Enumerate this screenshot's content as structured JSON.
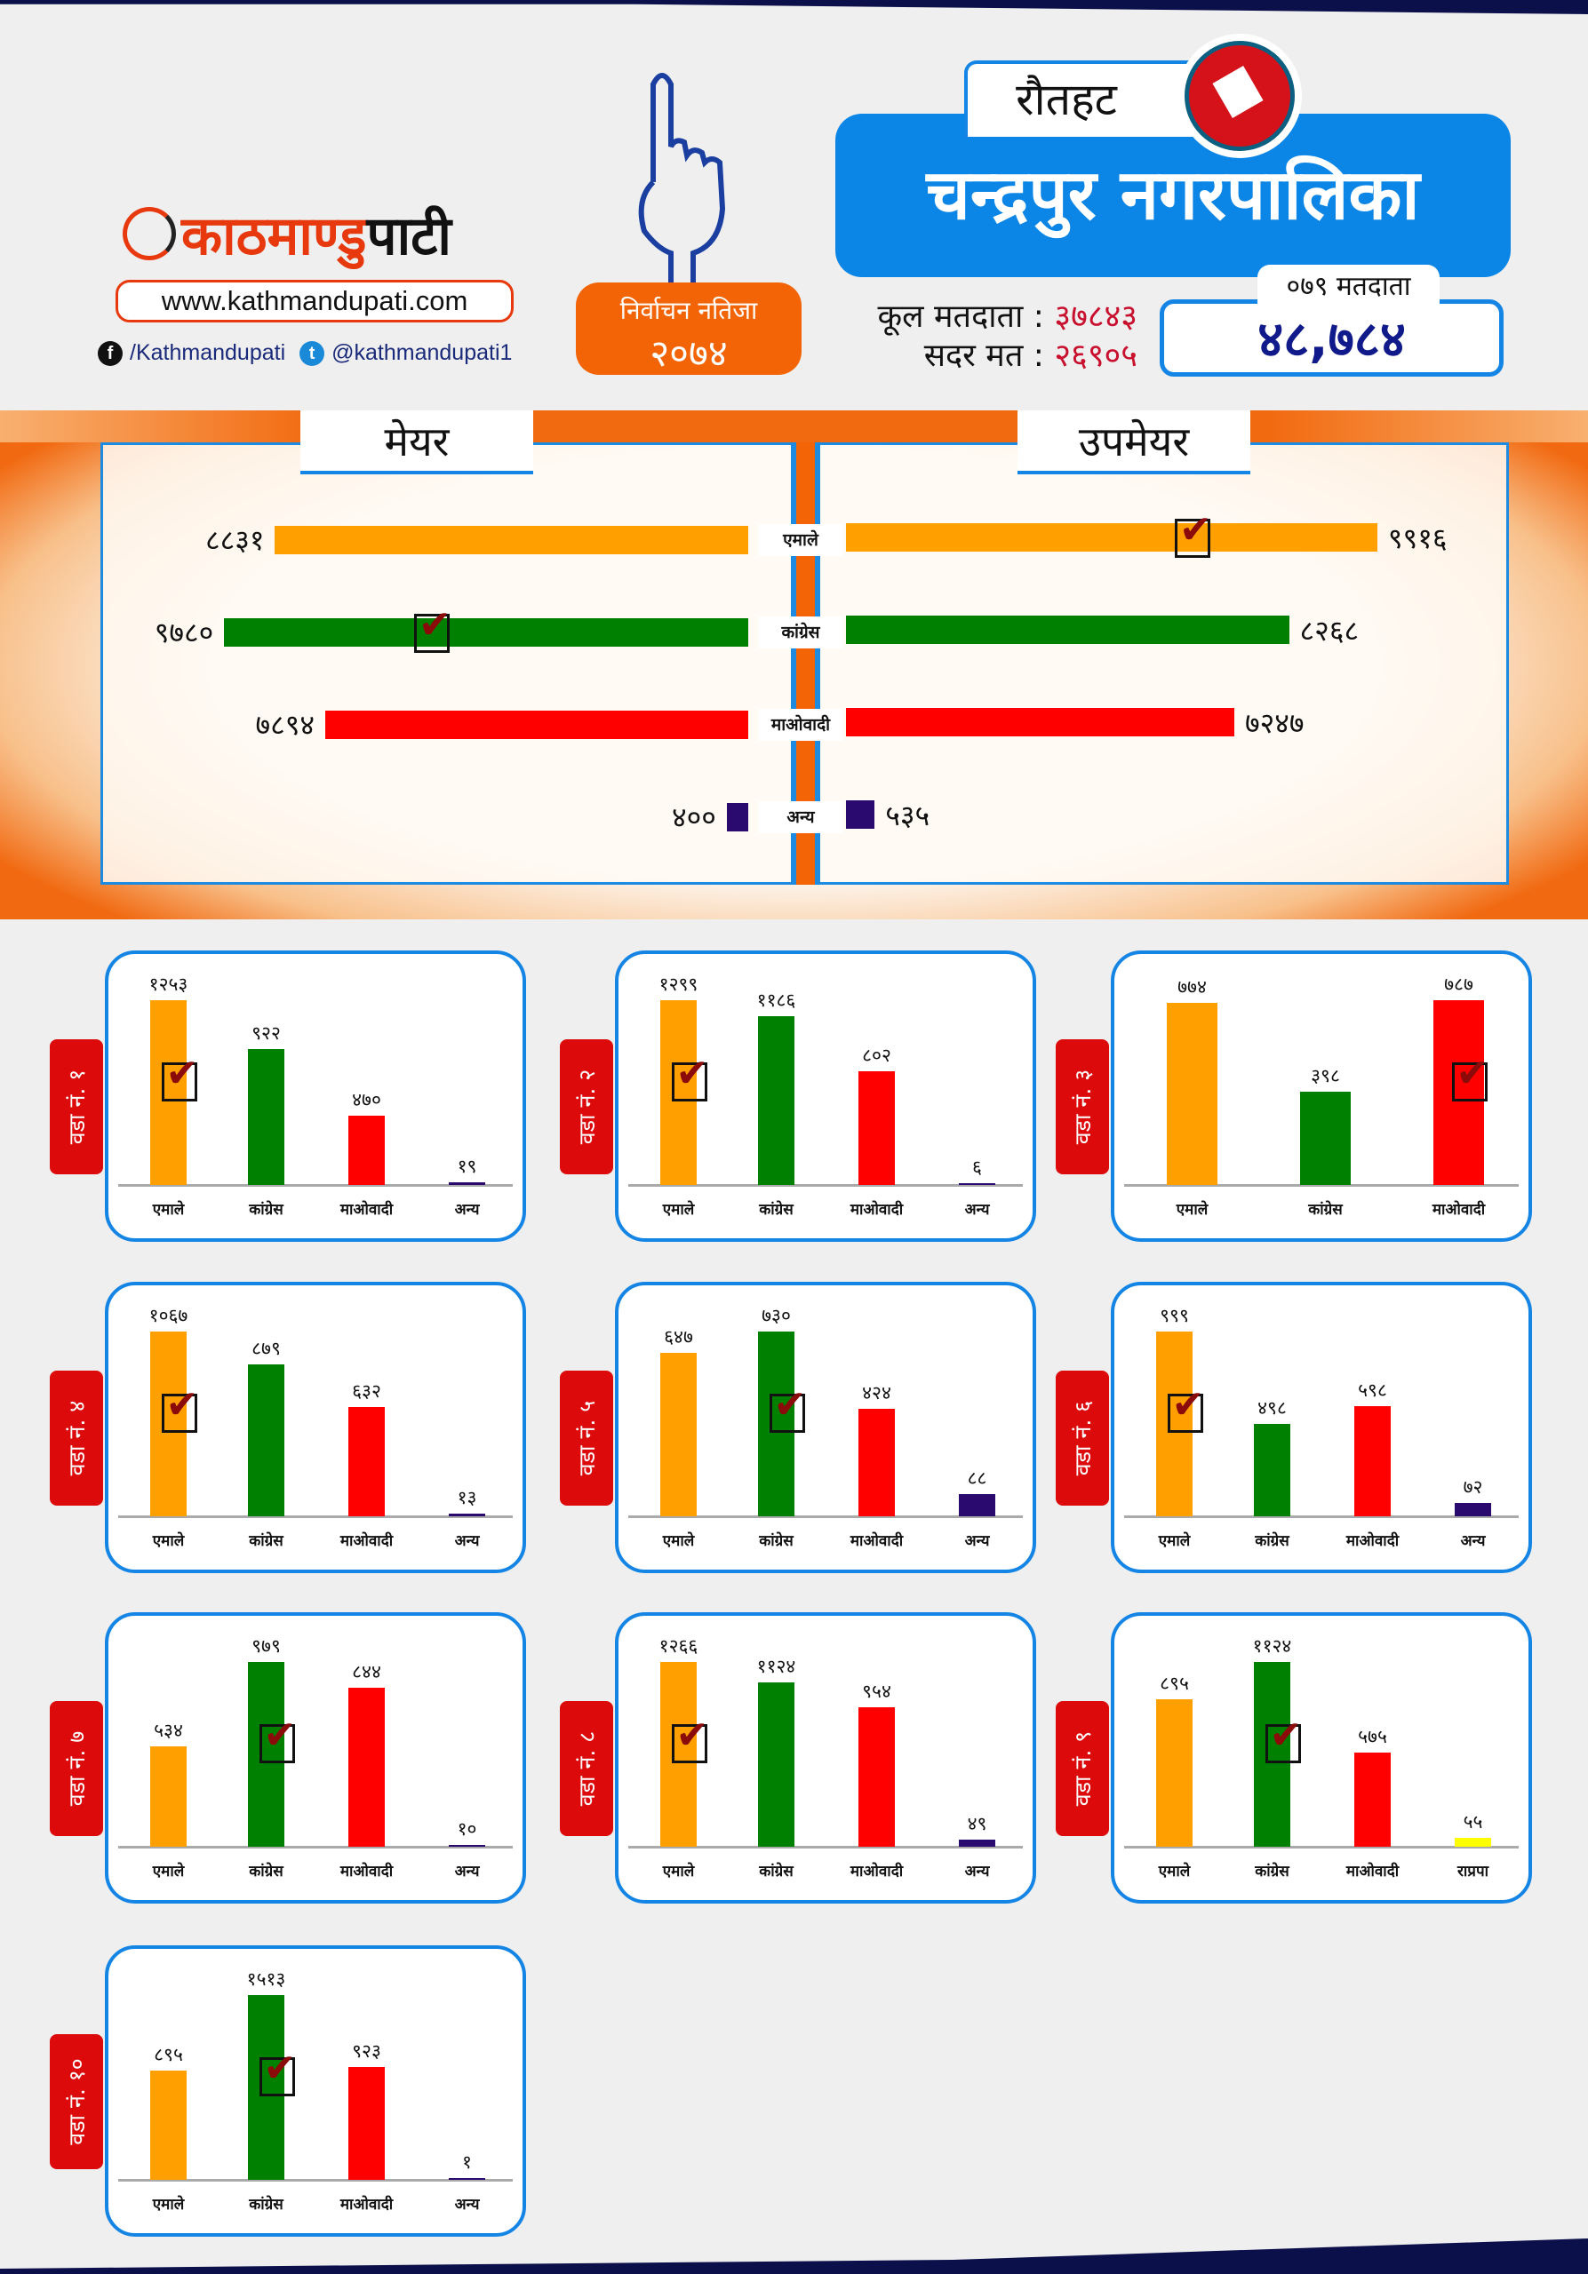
{
  "brand": {
    "name_part1": "काठमाण्डु",
    "name_part2": "पाटी",
    "url": "www.kathmandupati.com",
    "facebook": "/Kathmandupati",
    "twitter": "@kathmandupati1"
  },
  "badge": {
    "line1": "निर्वाचन नतिजा",
    "line2": "२०७४"
  },
  "district": "रौतहट",
  "municipality": "चन्द्रपुर  नगरपालिका",
  "totals": {
    "total_voters_label": "कूल मतदाता :",
    "total_voters": "३७८४३",
    "valid_votes_label": "सदर मत :",
    "valid_votes": "२६९०५"
  },
  "voters_079": {
    "label": "०७९ मतदाता",
    "value": "४८,७८४"
  },
  "colors": {
    "uml": "#ffa000",
    "congress": "#008000",
    "maoist": "#ff0000",
    "other": "#2a0a6e",
    "rpp": "#ffff00"
  },
  "summary": {
    "mayor_title": "मेयर",
    "deputy_title": "उपमेयर",
    "rows": [
      {
        "party": "एमाले",
        "key": "uml",
        "mayor": 8831,
        "mayor_label": "८८३१",
        "deputy": 9916,
        "deputy_label": "९९१६",
        "winner": "deputy"
      },
      {
        "party": "कांग्रेस",
        "key": "congress",
        "mayor": 9780,
        "mayor_label": "९७८०",
        "deputy": 8268,
        "deputy_label": "८२६८",
        "winner": "mayor"
      },
      {
        "party": "माओवादी",
        "key": "maoist",
        "mayor": 7894,
        "mayor_label": "७८९४",
        "deputy": 7247,
        "deputy_label": "७२४७",
        "winner": ""
      },
      {
        "party": "अन्य",
        "key": "other",
        "mayor": 400,
        "mayor_label": "४००",
        "deputy": 535,
        "deputy_label": "५३५",
        "winner": ""
      }
    ]
  },
  "wards": [
    {
      "label": "वडा नं. १",
      "winner": 0,
      "bars": [
        {
          "party": "एमाले",
          "key": "uml",
          "votes": 1253,
          "text": "१२५३"
        },
        {
          "party": "कांग्रेस",
          "key": "congress",
          "votes": 922,
          "text": "९२२"
        },
        {
          "party": "माओवादी",
          "key": "maoist",
          "votes": 470,
          "text": "४७०"
        },
        {
          "party": "अन्य",
          "key": "other",
          "votes": 19,
          "text": "१९"
        }
      ]
    },
    {
      "label": "वडा नं. २",
      "winner": 0,
      "bars": [
        {
          "party": "एमाले",
          "key": "uml",
          "votes": 1299,
          "text": "१२९९"
        },
        {
          "party": "कांग्रेस",
          "key": "congress",
          "votes": 1186,
          "text": "११८६"
        },
        {
          "party": "माओवादी",
          "key": "maoist",
          "votes": 802,
          "text": "८०२"
        },
        {
          "party": "अन्य",
          "key": "other",
          "votes": 6,
          "text": "६"
        }
      ]
    },
    {
      "label": "वडा नं. ३",
      "winner": 2,
      "bars": [
        {
          "party": "एमाले",
          "key": "uml",
          "votes": 774,
          "text": "७७४"
        },
        {
          "party": "कांग्रेस",
          "key": "congress",
          "votes": 398,
          "text": "३९८"
        },
        {
          "party": "माओवादी",
          "key": "maoist",
          "votes": 787,
          "text": "७८७"
        }
      ]
    },
    {
      "label": "वडा नं. ४",
      "winner": 0,
      "bars": [
        {
          "party": "एमाले",
          "key": "uml",
          "votes": 1067,
          "text": "१०६७"
        },
        {
          "party": "कांग्रेस",
          "key": "congress",
          "votes": 879,
          "text": "८७९"
        },
        {
          "party": "माओवादी",
          "key": "maoist",
          "votes": 632,
          "text": "६३२"
        },
        {
          "party": "अन्य",
          "key": "other",
          "votes": 13,
          "text": "१३"
        }
      ]
    },
    {
      "label": "वडा नं. ५",
      "winner": 1,
      "bars": [
        {
          "party": "एमाले",
          "key": "uml",
          "votes": 647,
          "text": "६४७"
        },
        {
          "party": "कांग्रेस",
          "key": "congress",
          "votes": 730,
          "text": "७३०"
        },
        {
          "party": "माओवादी",
          "key": "maoist",
          "votes": 424,
          "text": "४२४"
        },
        {
          "party": "अन्य",
          "key": "other",
          "votes": 88,
          "text": "८८"
        }
      ]
    },
    {
      "label": "वडा नं. ६",
      "winner": 0,
      "bars": [
        {
          "party": "एमाले",
          "key": "uml",
          "votes": 999,
          "text": "९९९"
        },
        {
          "party": "कांग्रेस",
          "key": "congress",
          "votes": 498,
          "text": "४९८"
        },
        {
          "party": "माओवादी",
          "key": "maoist",
          "votes": 598,
          "text": "५९८"
        },
        {
          "party": "अन्य",
          "key": "other",
          "votes": 72,
          "text": "७२"
        }
      ]
    },
    {
      "label": "वडा नं. ७",
      "winner": 1,
      "bars": [
        {
          "party": "एमाले",
          "key": "uml",
          "votes": 534,
          "text": "५३४"
        },
        {
          "party": "कांग्रेस",
          "key": "congress",
          "votes": 979,
          "text": "९७९"
        },
        {
          "party": "माओवादी",
          "key": "maoist",
          "votes": 844,
          "text": "८४४"
        },
        {
          "party": "अन्य",
          "key": "other",
          "votes": 10,
          "text": "१०"
        }
      ]
    },
    {
      "label": "वडा नं. ८",
      "winner": 0,
      "bars": [
        {
          "party": "एमाले",
          "key": "uml",
          "votes": 1266,
          "text": "१२६६"
        },
        {
          "party": "कांग्रेस",
          "key": "congress",
          "votes": 1124,
          "text": "११२४"
        },
        {
          "party": "माओवादी",
          "key": "maoist",
          "votes": 954,
          "text": "९५४"
        },
        {
          "party": "अन्य",
          "key": "other",
          "votes": 49,
          "text": "४९"
        }
      ]
    },
    {
      "label": "वडा नं. ९",
      "winner": 1,
      "bars": [
        {
          "party": "एमाले",
          "key": "uml",
          "votes": 895,
          "text": "८९५"
        },
        {
          "party": "कांग्रेस",
          "key": "congress",
          "votes": 1124,
          "text": "११२४"
        },
        {
          "party": "माओवादी",
          "key": "maoist",
          "votes": 575,
          "text": "५७५"
        },
        {
          "party": "राप्रपा",
          "key": "rpp",
          "votes": 55,
          "text": "५५"
        }
      ]
    },
    {
      "label": "वडा नं. १०",
      "winner": 1,
      "bars": [
        {
          "party": "एमाले",
          "key": "uml",
          "votes": 895,
          "text": "८९५"
        },
        {
          "party": "कांग्रेस",
          "key": "congress",
          "votes": 1513,
          "text": "१५१३"
        },
        {
          "party": "माओवादी",
          "key": "maoist",
          "votes": 923,
          "text": "९२३"
        },
        {
          "party": "अन्य",
          "key": "other",
          "votes": 1,
          "text": "१"
        }
      ]
    }
  ]
}
